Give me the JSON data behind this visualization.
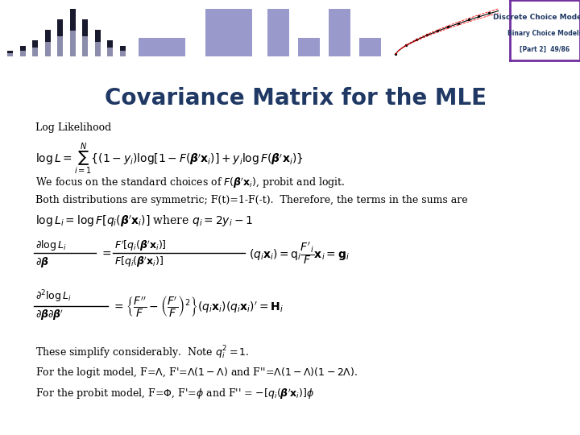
{
  "title": "Covariance Matrix for the MLE",
  "header_title": "Discrete Choice Modeling",
  "header_sub1": "Binary Choice Models",
  "header_sub2": "[Part 2]  49/86",
  "bg_color": "#FFFFFF",
  "title_color": "#1F3864",
  "text_color": "#000000",
  "header_left_bg": "#D8D8E8",
  "header_right_bg": "#FFFFFF",
  "header_border_color": "#7030A0",
  "purple_bar_color": "#7030A0",
  "left_bar_blue": "#1F3864",
  "left_bar_purple": "#7030A0",
  "left_bar_navy": "#1F3864",
  "body_text_fontsize": 9,
  "title_fontsize": 20
}
